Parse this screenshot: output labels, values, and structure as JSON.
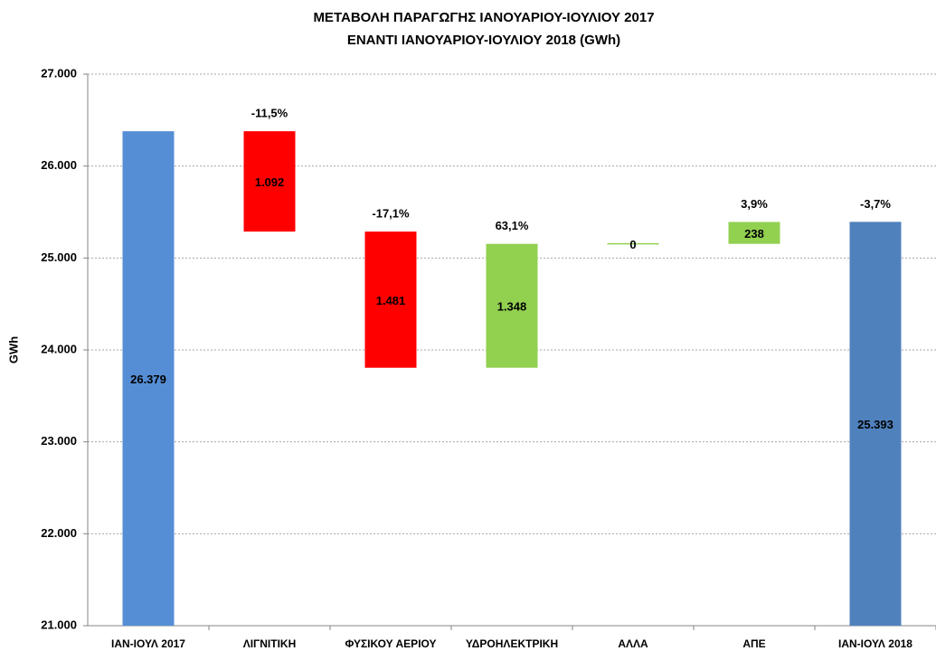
{
  "chart_data": {
    "type": "waterfall",
    "title": [
      "ΜΕΤΑΒΟΛΗ ΠΑΡΑΓΩΓΗΣ ΙΑΝΟΥΑΡΙΟΥ-ΙΟΥΛΙΟΥ 2017",
      "ΕΝΑΝΤΙ ΙΑΝΟΥΑΡΙΟΥ-ΙΟΥΛΙΟΥ 2018 (GWh)"
    ],
    "y_label": "GWh",
    "categories": [
      "ΙΑΝ-ΙΟΥΛ 2017",
      "ΛΙΓΝΙΤΙΚΗ",
      "ΦΥΣΙΚΟΥ ΑΕΡΙΟΥ",
      "ΥΔΡΟΗΛΕΚΤΡΙΚΗ",
      "ΑΛΛΑ",
      "ΑΠΕ",
      "ΙΑΝ-ΙΟΥΛ 2018"
    ],
    "values": [
      26379,
      -1092,
      -1481,
      1348,
      0,
      238,
      25393
    ],
    "value_labels": [
      "26.379",
      "1.092",
      "1.481",
      "1.348",
      "0",
      "238",
      "25.393"
    ],
    "percent_labels": [
      null,
      "-11,5%",
      "-17,1%",
      "63,1%",
      null,
      "3,9%",
      "-3,7%"
    ],
    "colors": [
      "#558ed5",
      "#ff0000",
      "#ff0000",
      "#92d050",
      "#92d050",
      "#92d050",
      "#4f81bd"
    ],
    "ylim": [
      21000,
      27000
    ],
    "yticks": [
      {
        "value": 21000,
        "label": "21.000"
      },
      {
        "value": 22000,
        "label": "22.000"
      },
      {
        "value": 23000,
        "label": "23.000"
      },
      {
        "value": 24000,
        "label": "24.000"
      },
      {
        "value": 25000,
        "label": "25.000"
      },
      {
        "value": 26000,
        "label": "26.000"
      },
      {
        "value": 27000,
        "label": "27.000"
      }
    ],
    "grid": true
  }
}
